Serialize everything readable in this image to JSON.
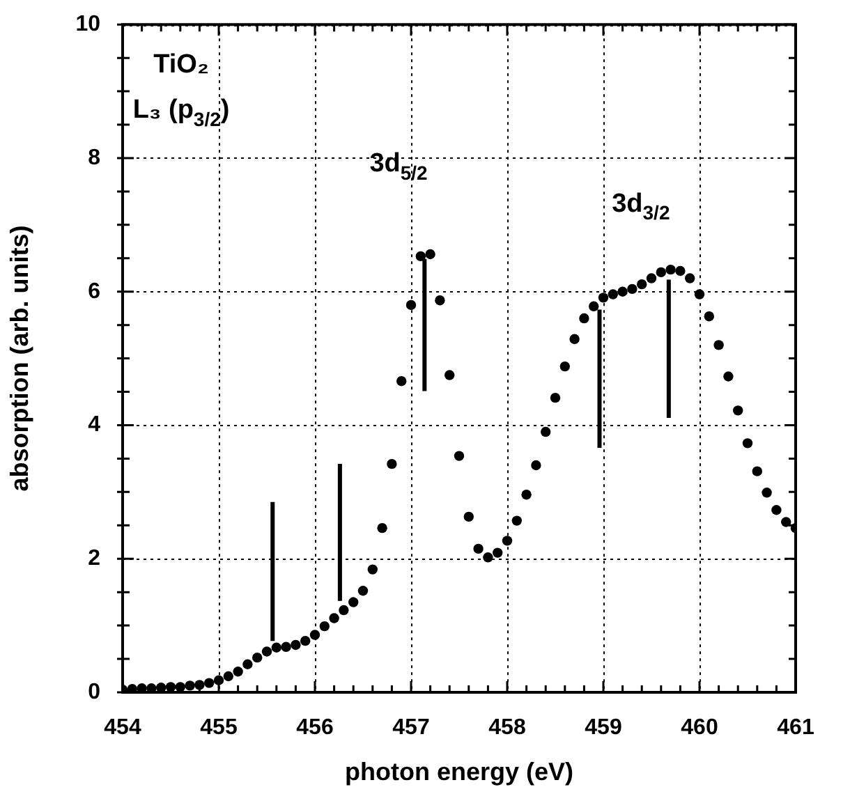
{
  "chart_data": {
    "type": "scatter",
    "xlabel": "photon energy (eV)",
    "ylabel": "absorption (arb. units)",
    "xlim": [
      454,
      461
    ],
    "ylim": [
      0,
      10
    ],
    "xticks": [
      454,
      {
        "value": 454.2,
        "label": null
      },
      {
        "value": 454.4,
        "label": null
      },
      {
        "value": 454.6,
        "label": null
      },
      {
        "value": 454.8,
        "label": null
      },
      455,
      {
        "value": 455.2,
        "label": null
      },
      {
        "value": 455.4,
        "label": null
      },
      {
        "value": 455.6,
        "label": null
      },
      {
        "value": 455.8,
        "label": null
      },
      456,
      {
        "value": 456.2,
        "label": null
      },
      {
        "value": 456.4,
        "label": null
      },
      {
        "value": 456.6,
        "label": null
      },
      {
        "value": 456.8,
        "label": null
      },
      457,
      {
        "value": 457.2,
        "label": null
      },
      {
        "value": 457.4,
        "label": null
      },
      {
        "value": 457.6,
        "label": null
      },
      {
        "value": 457.8,
        "label": null
      },
      458,
      {
        "value": 458.2,
        "label": null
      },
      {
        "value": 458.4,
        "label": null
      },
      {
        "value": 458.6,
        "label": null
      },
      {
        "value": 458.8,
        "label": null
      },
      459,
      {
        "value": 459.2,
        "label": null
      },
      {
        "value": 459.4,
        "label": null
      },
      {
        "value": 459.6,
        "label": null
      },
      {
        "value": 459.8,
        "label": null
      },
      460,
      {
        "value": 460.2,
        "label": null
      },
      {
        "value": 460.4,
        "label": null
      },
      {
        "value": 460.6,
        "label": null
      },
      {
        "value": 460.8,
        "label": null
      },
      461
    ],
    "yticks": [
      0,
      {
        "value": 0.5,
        "label": null
      },
      {
        "value": 1,
        "label": null
      },
      {
        "value": 1.5,
        "label": null
      },
      2,
      {
        "value": 2.5,
        "label": null
      },
      {
        "value": 3,
        "label": null
      },
      {
        "value": 3.5,
        "label": null
      },
      4,
      {
        "value": 4.5,
        "label": null
      },
      {
        "value": 5,
        "label": null
      },
      {
        "value": 5.5,
        "label": null
      },
      6,
      {
        "value": 6.5,
        "label": null
      },
      {
        "value": 7,
        "label": null
      },
      {
        "value": 7.5,
        "label": null
      },
      8,
      {
        "value": 8.5,
        "label": null
      },
      {
        "value": 9,
        "label": null
      },
      {
        "value": 9.5,
        "label": null
      },
      10
    ],
    "grid": true,
    "legend": false,
    "series": [
      {
        "type": "scatter",
        "color": "#000000",
        "marker": "circle",
        "x": [
          454.0,
          454.1,
          454.2,
          454.3,
          454.4,
          454.5,
          454.6,
          454.7,
          454.8,
          454.9,
          455.0,
          455.1,
          455.2,
          455.3,
          455.4,
          455.5,
          455.6,
          455.7,
          455.8,
          455.9,
          456.0,
          456.1,
          456.2,
          456.3,
          456.4,
          456.5,
          456.6,
          456.7,
          456.8,
          456.9,
          457.0,
          457.1,
          457.2,
          457.3,
          457.4,
          457.5,
          457.6,
          457.7,
          457.8,
          457.9,
          458.0,
          458.1,
          458.2,
          458.3,
          458.4,
          458.5,
          458.6,
          458.7,
          458.8,
          458.9,
          459.0,
          459.1,
          459.2,
          459.3,
          459.4,
          459.5,
          459.6,
          459.7,
          459.8,
          459.9,
          460.0,
          460.1,
          460.2,
          460.3,
          460.4,
          460.5,
          460.6,
          460.7,
          460.8,
          460.9,
          461.0
        ],
        "values": [
          0.04,
          0.05,
          0.06,
          0.06,
          0.07,
          0.08,
          0.08,
          0.1,
          0.11,
          0.14,
          0.18,
          0.24,
          0.31,
          0.42,
          0.52,
          0.61,
          0.67,
          0.68,
          0.71,
          0.77,
          0.86,
          0.99,
          1.11,
          1.23,
          1.35,
          1.52,
          1.84,
          2.46,
          3.42,
          4.66,
          5.8,
          6.53,
          6.56,
          5.87,
          4.75,
          3.54,
          2.63,
          2.15,
          2.02,
          2.09,
          2.27,
          2.57,
          2.96,
          3.4,
          3.9,
          4.41,
          4.88,
          5.29,
          5.6,
          5.78,
          5.91,
          5.96,
          6.0,
          6.04,
          6.11,
          6.2,
          6.29,
          6.33,
          6.31,
          6.2,
          5.96,
          5.63,
          5.2,
          4.73,
          4.22,
          3.73,
          3.31,
          2.99,
          2.73,
          2.55,
          2.46
        ]
      },
      {
        "type": "line",
        "color": "#000000",
        "marker": "none",
        "x": [
          455.56,
          455.56
        ],
        "values": [
          0.77,
          2.85
        ]
      },
      {
        "type": "line",
        "color": "#000000",
        "marker": "none",
        "x": [
          456.26,
          456.26
        ],
        "values": [
          1.37,
          3.42
        ]
      },
      {
        "type": "line",
        "color": "#000000",
        "marker": "none",
        "x": [
          457.14,
          457.14
        ],
        "values": [
          4.51,
          6.49
        ]
      },
      {
        "type": "line",
        "color": "#000000",
        "marker": "none",
        "x": [
          458.96,
          458.96
        ],
        "values": [
          3.66,
          5.73
        ]
      },
      {
        "type": "line",
        "color": "#000000",
        "marker": "none",
        "x": [
          459.68,
          459.68
        ],
        "values": [
          4.11,
          6.18
        ]
      }
    ],
    "annotations": [
      "TiO₂",
      "L₃ (p$_{3/2}$)",
      "3d$_{5/2}$",
      "3d$_{3/2}$"
    ]
  }
}
